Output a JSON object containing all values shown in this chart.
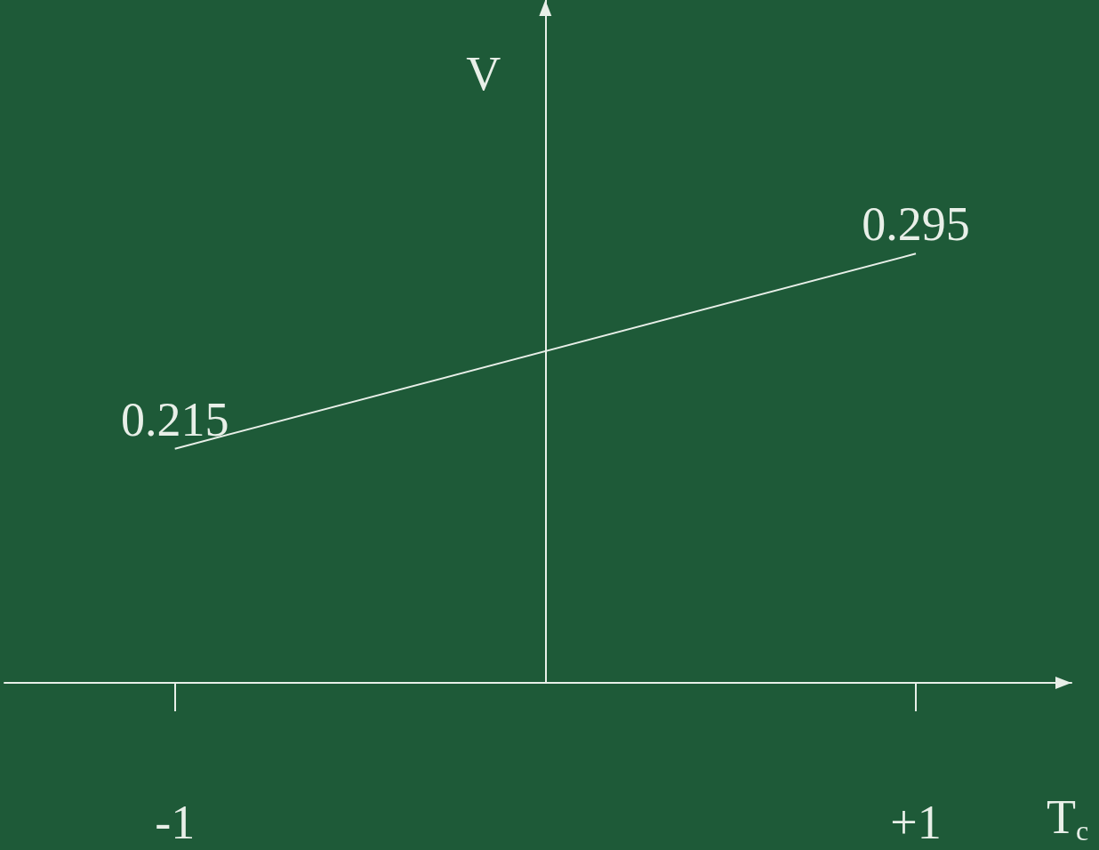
{
  "chart_data": {
    "type": "line",
    "xlabel": "T$_{c}$",
    "ylabel": "V",
    "x": [
      -1,
      1
    ],
    "series": [
      {
        "color": "#e8efe8",
        "values": [
          0.215,
          0.295
        ]
      }
    ],
    "xlim": [
      -1.46,
      1.42
    ],
    "xticks": [
      -1,
      {
        "value": 1,
        "label": "+1"
      }
    ],
    "tick_labels": "x",
    "data_labels": true,
    "grid": false,
    "marker": "none",
    "line_style": "solid"
  }
}
